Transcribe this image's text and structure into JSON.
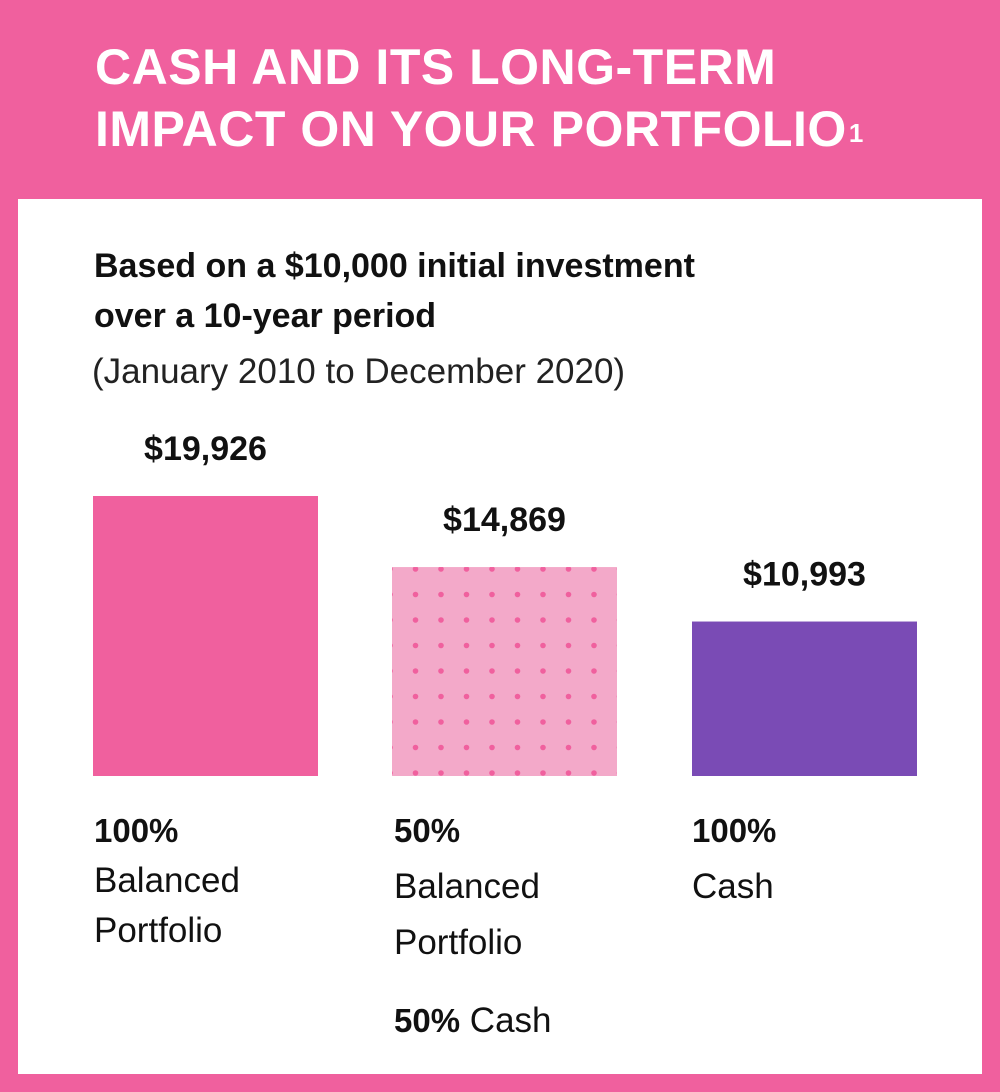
{
  "header": {
    "title_line1": "CASH AND ITS LONG-TERM",
    "title_line2": "IMPACT ON YOUR PORTFOLIO",
    "footnote_mark": "1"
  },
  "subtitle": {
    "line1": "Based on a $10,000 initial investment",
    "line2": "over a 10-year period",
    "period": "(January 2010 to December 2020)"
  },
  "colors": {
    "background": "#f0609e",
    "bar_balanced": "#f0609e",
    "bar_mixed": "#f3a9c9",
    "bar_mixed_dots": "#f0609e",
    "bar_cash": "#7a4bb5"
  },
  "chart_data": {
    "type": "bar",
    "categories": [
      "100% Balanced Portfolio",
      "50% Balanced Portfolio 50% Cash",
      "100% Cash"
    ],
    "values": [
      19926,
      14869,
      10993
    ],
    "value_labels": [
      "$19,926",
      "$14,869",
      "$10,993"
    ],
    "title": "Based on a $10,000 initial investment over a 10-year period",
    "subtitle": "(January 2010 to December 2020)",
    "xlabel": "",
    "ylabel": "",
    "grid": false
  },
  "bars": [
    {
      "pct": "100%",
      "name_line1": "Balanced",
      "name_line2": "Portfolio"
    },
    {
      "pct": "50%",
      "name_line1": "Balanced",
      "name_line2": "Portfolio",
      "extra_pct": "50%",
      "extra_name": "Cash"
    },
    {
      "pct": "100%",
      "name_line1": "Cash"
    }
  ]
}
